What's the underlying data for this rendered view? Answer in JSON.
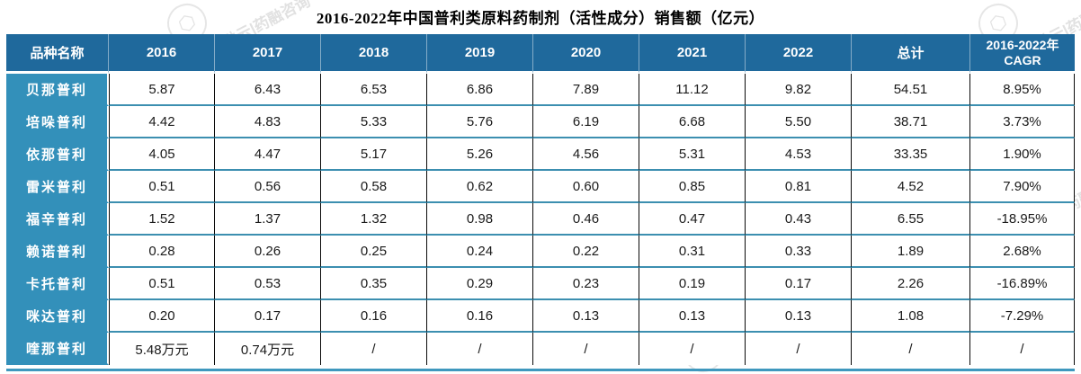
{
  "title": "2016-2022年中国普利类原料药制剂（活性成分）销售额（亿元）",
  "watermark": {
    "text": "药融云|药融咨询",
    "stamp_glyph": "⬡"
  },
  "colors": {
    "header_bg": "#1f699c",
    "label_bg": "#3390ba",
    "row_line": "#3c8fb0",
    "column_line": "#0a0a0a",
    "bottom_bar": "#3f98be",
    "header_text": "#ffffff",
    "body_text": "#1a1a1a"
  },
  "table_header": {
    "cagr_line1": "2016-2022年",
    "cagr_line2": "CAGR"
  },
  "chart_data": {
    "type": "table",
    "title": "2016-2022年中国普利类原料药制剂（活性成分）销售额（亿元）",
    "columns": [
      "品种名称",
      "2016",
      "2017",
      "2018",
      "2019",
      "2020",
      "2021",
      "2022",
      "总计",
      "2016-2022年CAGR"
    ],
    "rows": [
      {
        "name": "贝那普利",
        "values": [
          "5.87",
          "6.43",
          "6.53",
          "6.86",
          "7.89",
          "11.12",
          "9.82",
          "54.51",
          "8.95%"
        ]
      },
      {
        "name": "培哚普利",
        "values": [
          "4.42",
          "4.83",
          "5.33",
          "5.76",
          "6.19",
          "6.68",
          "5.50",
          "38.71",
          "3.73%"
        ]
      },
      {
        "name": "依那普利",
        "values": [
          "4.05",
          "4.47",
          "5.17",
          "5.26",
          "4.56",
          "5.31",
          "4.53",
          "33.35",
          "1.90%"
        ]
      },
      {
        "name": "雷米普利",
        "values": [
          "0.51",
          "0.56",
          "0.58",
          "0.62",
          "0.60",
          "0.85",
          "0.81",
          "4.52",
          "7.90%"
        ]
      },
      {
        "name": "福辛普利",
        "values": [
          "1.52",
          "1.37",
          "1.32",
          "0.98",
          "0.46",
          "0.47",
          "0.43",
          "6.55",
          "-18.95%"
        ]
      },
      {
        "name": "赖诺普利",
        "values": [
          "0.28",
          "0.26",
          "0.25",
          "0.24",
          "0.22",
          "0.31",
          "0.33",
          "1.89",
          "2.68%"
        ]
      },
      {
        "name": "卡托普利",
        "values": [
          "0.51",
          "0.53",
          "0.35",
          "0.29",
          "0.23",
          "0.19",
          "0.17",
          "2.26",
          "-16.89%"
        ]
      },
      {
        "name": "咪达普利",
        "values": [
          "0.20",
          "0.17",
          "0.16",
          "0.16",
          "0.13",
          "0.13",
          "0.13",
          "1.08",
          "-7.29%"
        ]
      },
      {
        "name": "喹那普利",
        "values": [
          "5.48万元",
          "0.74万元",
          "/",
          "/",
          "/",
          "/",
          "/",
          "/",
          "/"
        ]
      }
    ]
  }
}
